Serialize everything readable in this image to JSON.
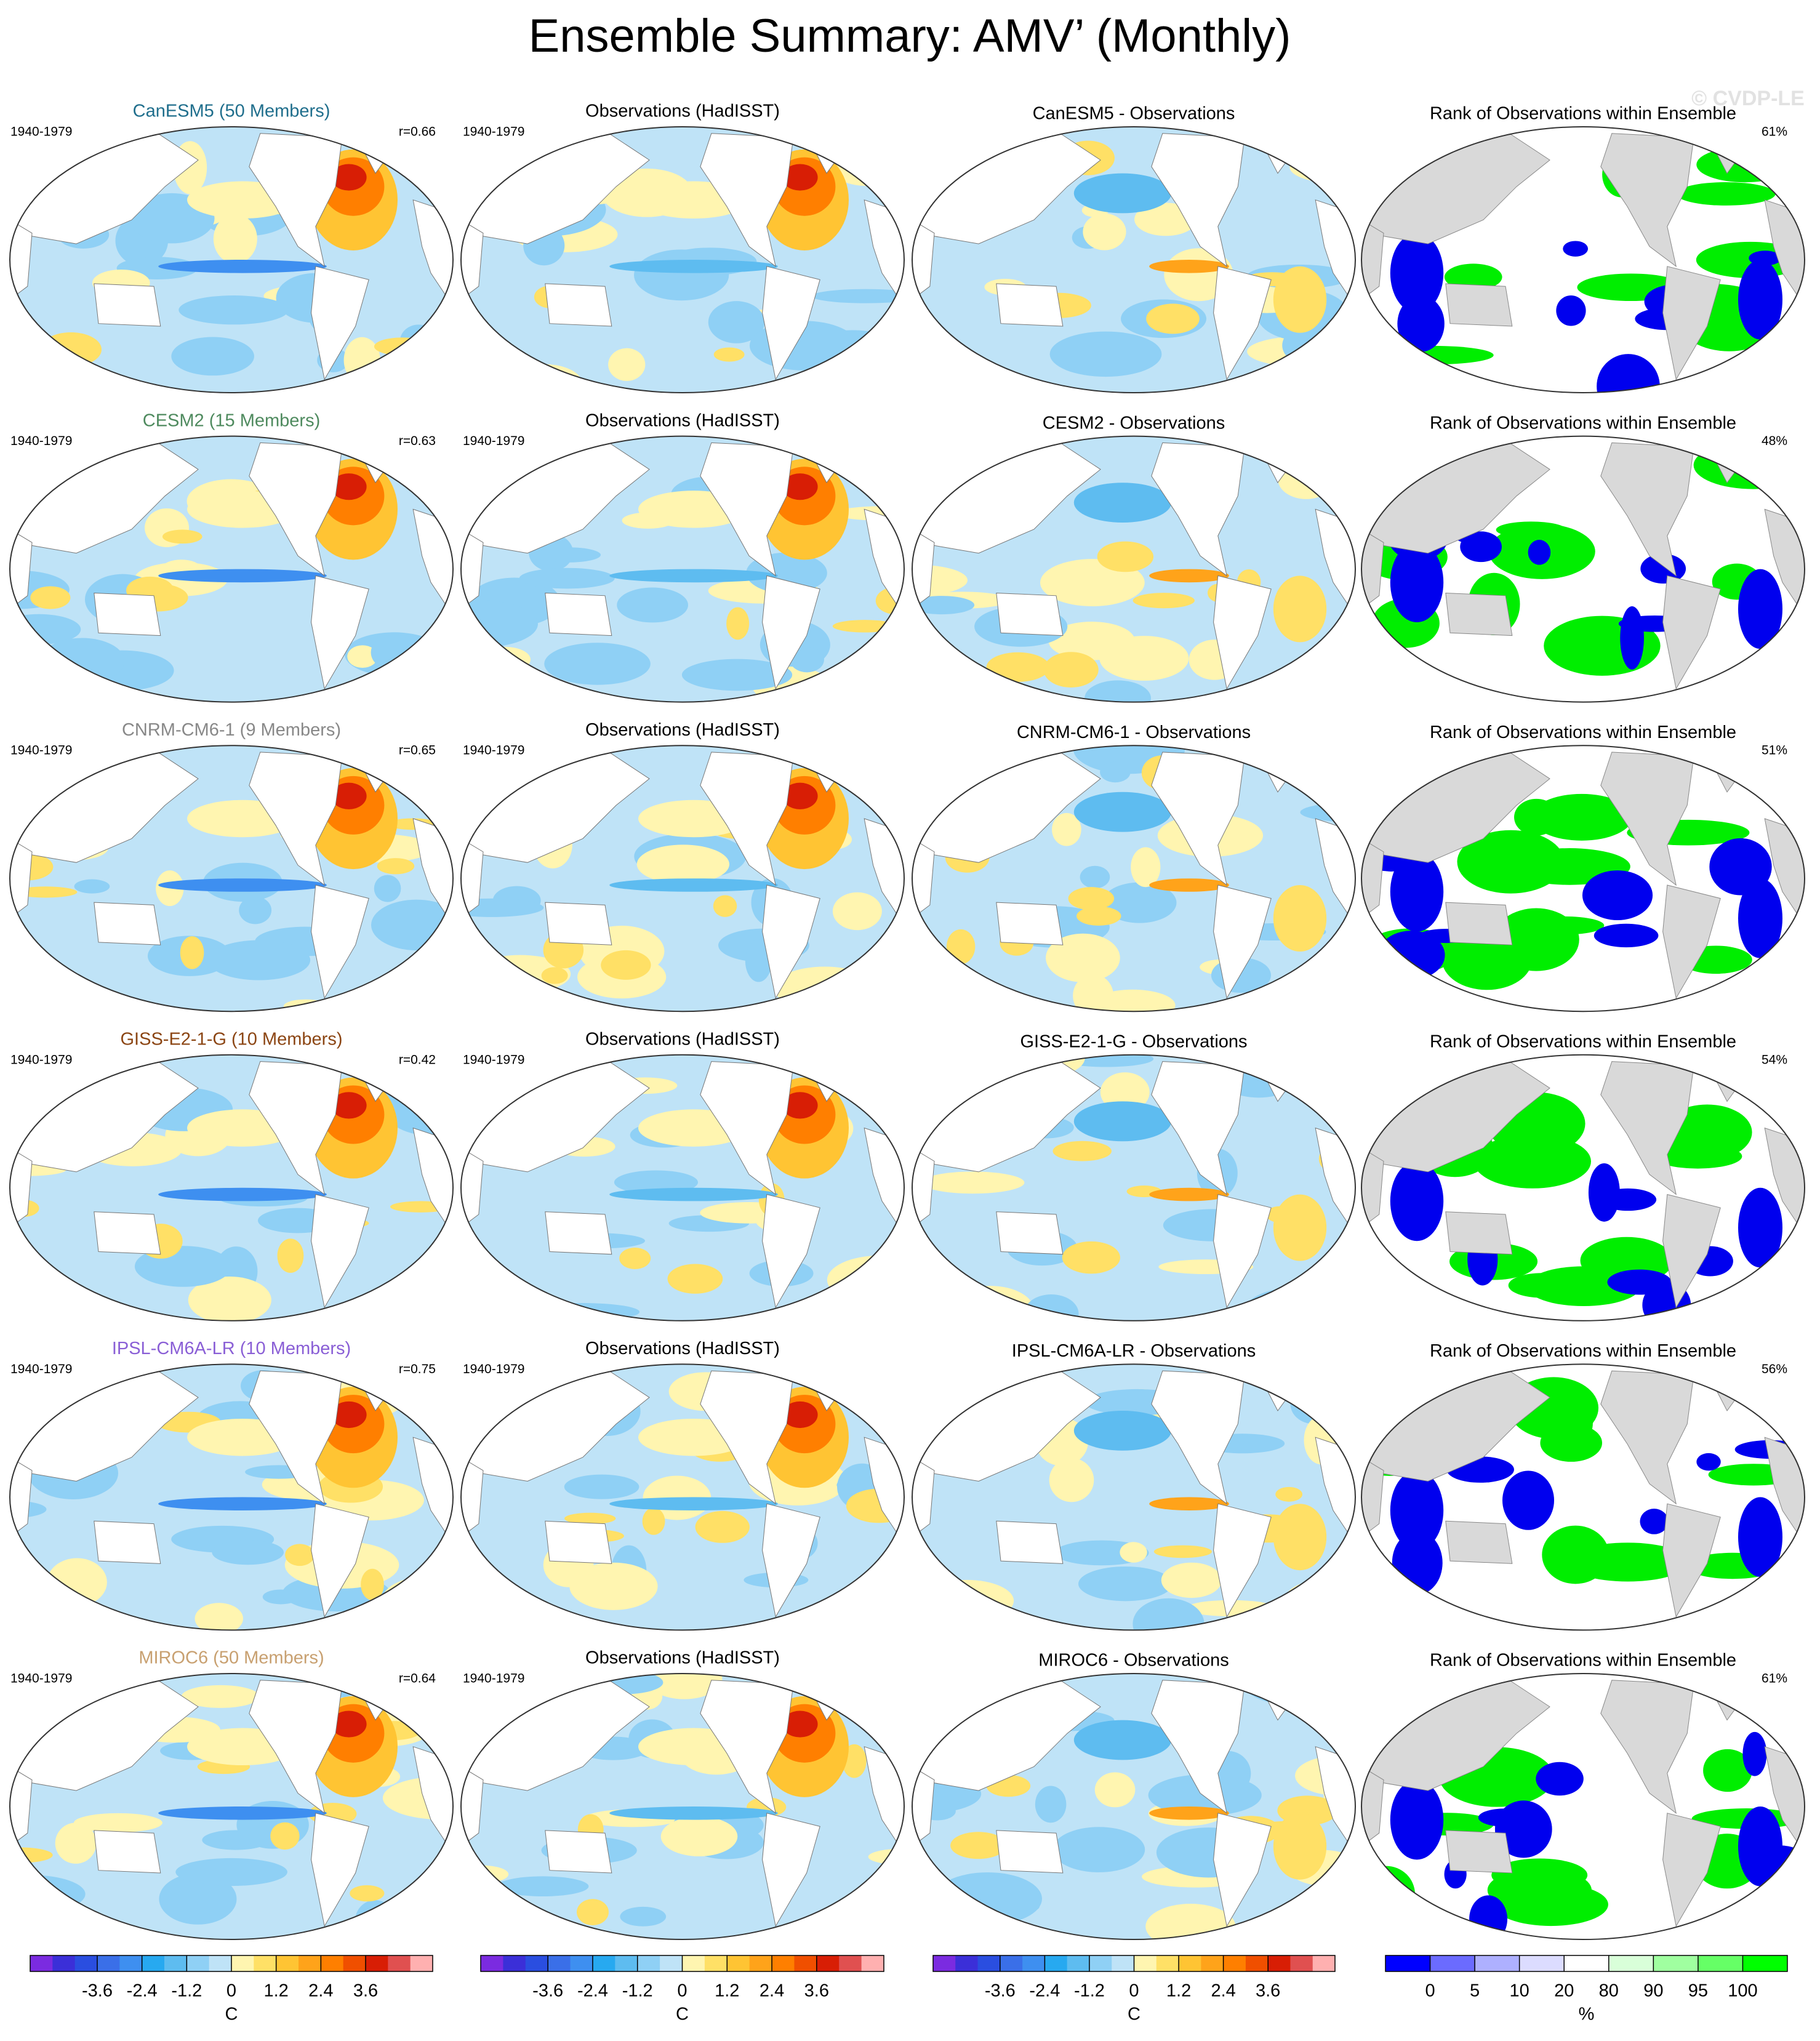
{
  "title": "Ensemble Summary: AMV’ (Monthly)",
  "watermark": "© CVDP-LE",
  "rows": [
    {
      "model": "CanESM5 (50 Members)",
      "label_color": "#1f6e8c",
      "period": "1940-1979",
      "r": "r=0.66",
      "obs_title": "Observations (HadISST)",
      "diff_title": "CanESM5 - Observations",
      "rank_title": "Rank of Observations within Ensemble",
      "rank_pct": "61%"
    },
    {
      "model": "CESM2 (15 Members)",
      "label_color": "#4e8a5e",
      "period": "1940-1979",
      "r": "r=0.63",
      "obs_title": "Observations (HadISST)",
      "diff_title": "CESM2 - Observations",
      "rank_title": "Rank of Observations within Ensemble",
      "rank_pct": "48%"
    },
    {
      "model": "CNRM-CM6-1 (9 Members)",
      "label_color": "#888888",
      "period": "1940-1979",
      "r": "r=0.65",
      "obs_title": "Observations (HadISST)",
      "diff_title": "CNRM-CM6-1 - Observations",
      "rank_title": "Rank of Observations within Ensemble",
      "rank_pct": "51%"
    },
    {
      "model": "GISS-E2-1-G (10 Members)",
      "label_color": "#8b4513",
      "period": "1940-1979",
      "r": "r=0.42",
      "obs_title": "Observations (HadISST)",
      "diff_title": "GISS-E2-1-G - Observations",
      "rank_title": "Rank of Observations within Ensemble",
      "rank_pct": "54%"
    },
    {
      "model": "IPSL-CM6A-LR (10 Members)",
      "label_color": "#8a5fd6",
      "period": "1940-1979",
      "r": "r=0.75",
      "obs_title": "Observations (HadISST)",
      "diff_title": "IPSL-CM6A-LR - Observations",
      "rank_title": "Rank of Observations within Ensemble",
      "rank_pct": "56%"
    },
    {
      "model": "MIROC6 (50 Members)",
      "label_color": "#c8a070",
      "period": "1940-1979",
      "r": "r=0.64",
      "obs_title": "Observations (HadISST)",
      "diff_title": "MIROC6 - Observations",
      "rank_title": "Rank of Observations within Ensemble",
      "rank_pct": "61%"
    }
  ],
  "colorbars": [
    {
      "kind": "linear",
      "xlim": [
        -5.4,
        5.4
      ],
      "ticks": [
        -3.6,
        -2.4,
        -1.2,
        0,
        1.2,
        2.4,
        3.6
      ],
      "unit": "C",
      "colors": [
        "#7b2be0",
        "#3b2fd8",
        "#2a4ee0",
        "#3a6fe8",
        "#3e8ff0",
        "#27a9f0",
        "#5ebcf0",
        "#8fd0f5",
        "#bfe3f7",
        "#fff5b0",
        "#ffe066",
        "#ffc433",
        "#ffa31a",
        "#ff7f00",
        "#f04f00",
        "#d81e05",
        "#e05050",
        "#ffb0b0"
      ]
    },
    {
      "kind": "linear",
      "xlim": [
        -5.4,
        5.4
      ],
      "ticks": [
        -3.6,
        -2.4,
        -1.2,
        0,
        1.2,
        2.4,
        3.6
      ],
      "unit": "C",
      "colors": [
        "#7b2be0",
        "#3b2fd8",
        "#2a4ee0",
        "#3a6fe8",
        "#3e8ff0",
        "#27a9f0",
        "#5ebcf0",
        "#8fd0f5",
        "#bfe3f7",
        "#fff5b0",
        "#ffe066",
        "#ffc433",
        "#ffa31a",
        "#ff7f00",
        "#f04f00",
        "#d81e05",
        "#e05050",
        "#ffb0b0"
      ]
    },
    {
      "kind": "linear",
      "xlim": [
        -5.4,
        5.4
      ],
      "ticks": [
        -3.6,
        -2.4,
        -1.2,
        0,
        1.2,
        2.4,
        3.6
      ],
      "unit": "C",
      "colors": [
        "#7b2be0",
        "#3b2fd8",
        "#2a4ee0",
        "#3a6fe8",
        "#3e8ff0",
        "#27a9f0",
        "#5ebcf0",
        "#8fd0f5",
        "#bfe3f7",
        "#fff5b0",
        "#ffe066",
        "#ffc433",
        "#ffa31a",
        "#ff7f00",
        "#f04f00",
        "#d81e05",
        "#e05050",
        "#ffb0b0"
      ]
    },
    {
      "kind": "boundaries",
      "ticks": [
        0,
        5,
        10,
        20,
        80,
        90,
        95,
        100
      ],
      "unit": "%",
      "colors": [
        "#0000ff",
        "#6b6bff",
        "#aeb0ff",
        "#dcdcff",
        "#ffffff",
        "#d9ffd9",
        "#a0ffa0",
        "#66ff66",
        "#00ff00"
      ]
    }
  ]
}
